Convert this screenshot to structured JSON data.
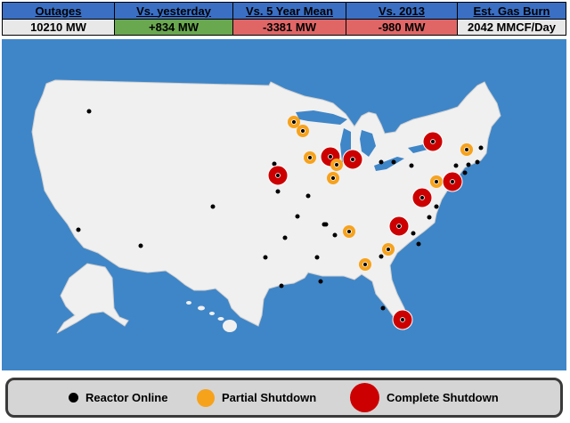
{
  "stats": {
    "outages": {
      "header": "Outages",
      "value": "10210 MW",
      "color": "#e8e8e8"
    },
    "vs_yesterday": {
      "header": "Vs. yesterday",
      "value": "+834 MW",
      "color": "#6aa84f"
    },
    "vs_5yr": {
      "header": "Vs. 5 Year Mean",
      "value": "-3381 MW",
      "color": "#e06666"
    },
    "vs_2013": {
      "header": "Vs. 2013",
      "value": "-980 MW",
      "color": "#e06666"
    },
    "gas_burn": {
      "header": "Est. Gas Burn",
      "value": "2042 MMCF/Day",
      "color": "#e8e8e8"
    }
  },
  "legend": {
    "online": "Reactor Online",
    "partial": "Partial Shutdown",
    "complete": "Complete Shutdown"
  },
  "colors": {
    "ocean": "#3f86c8",
    "land": "#f0f0f0",
    "online": "#000000",
    "partial": "#f7a21b",
    "complete": "#cc0000"
  }
}
